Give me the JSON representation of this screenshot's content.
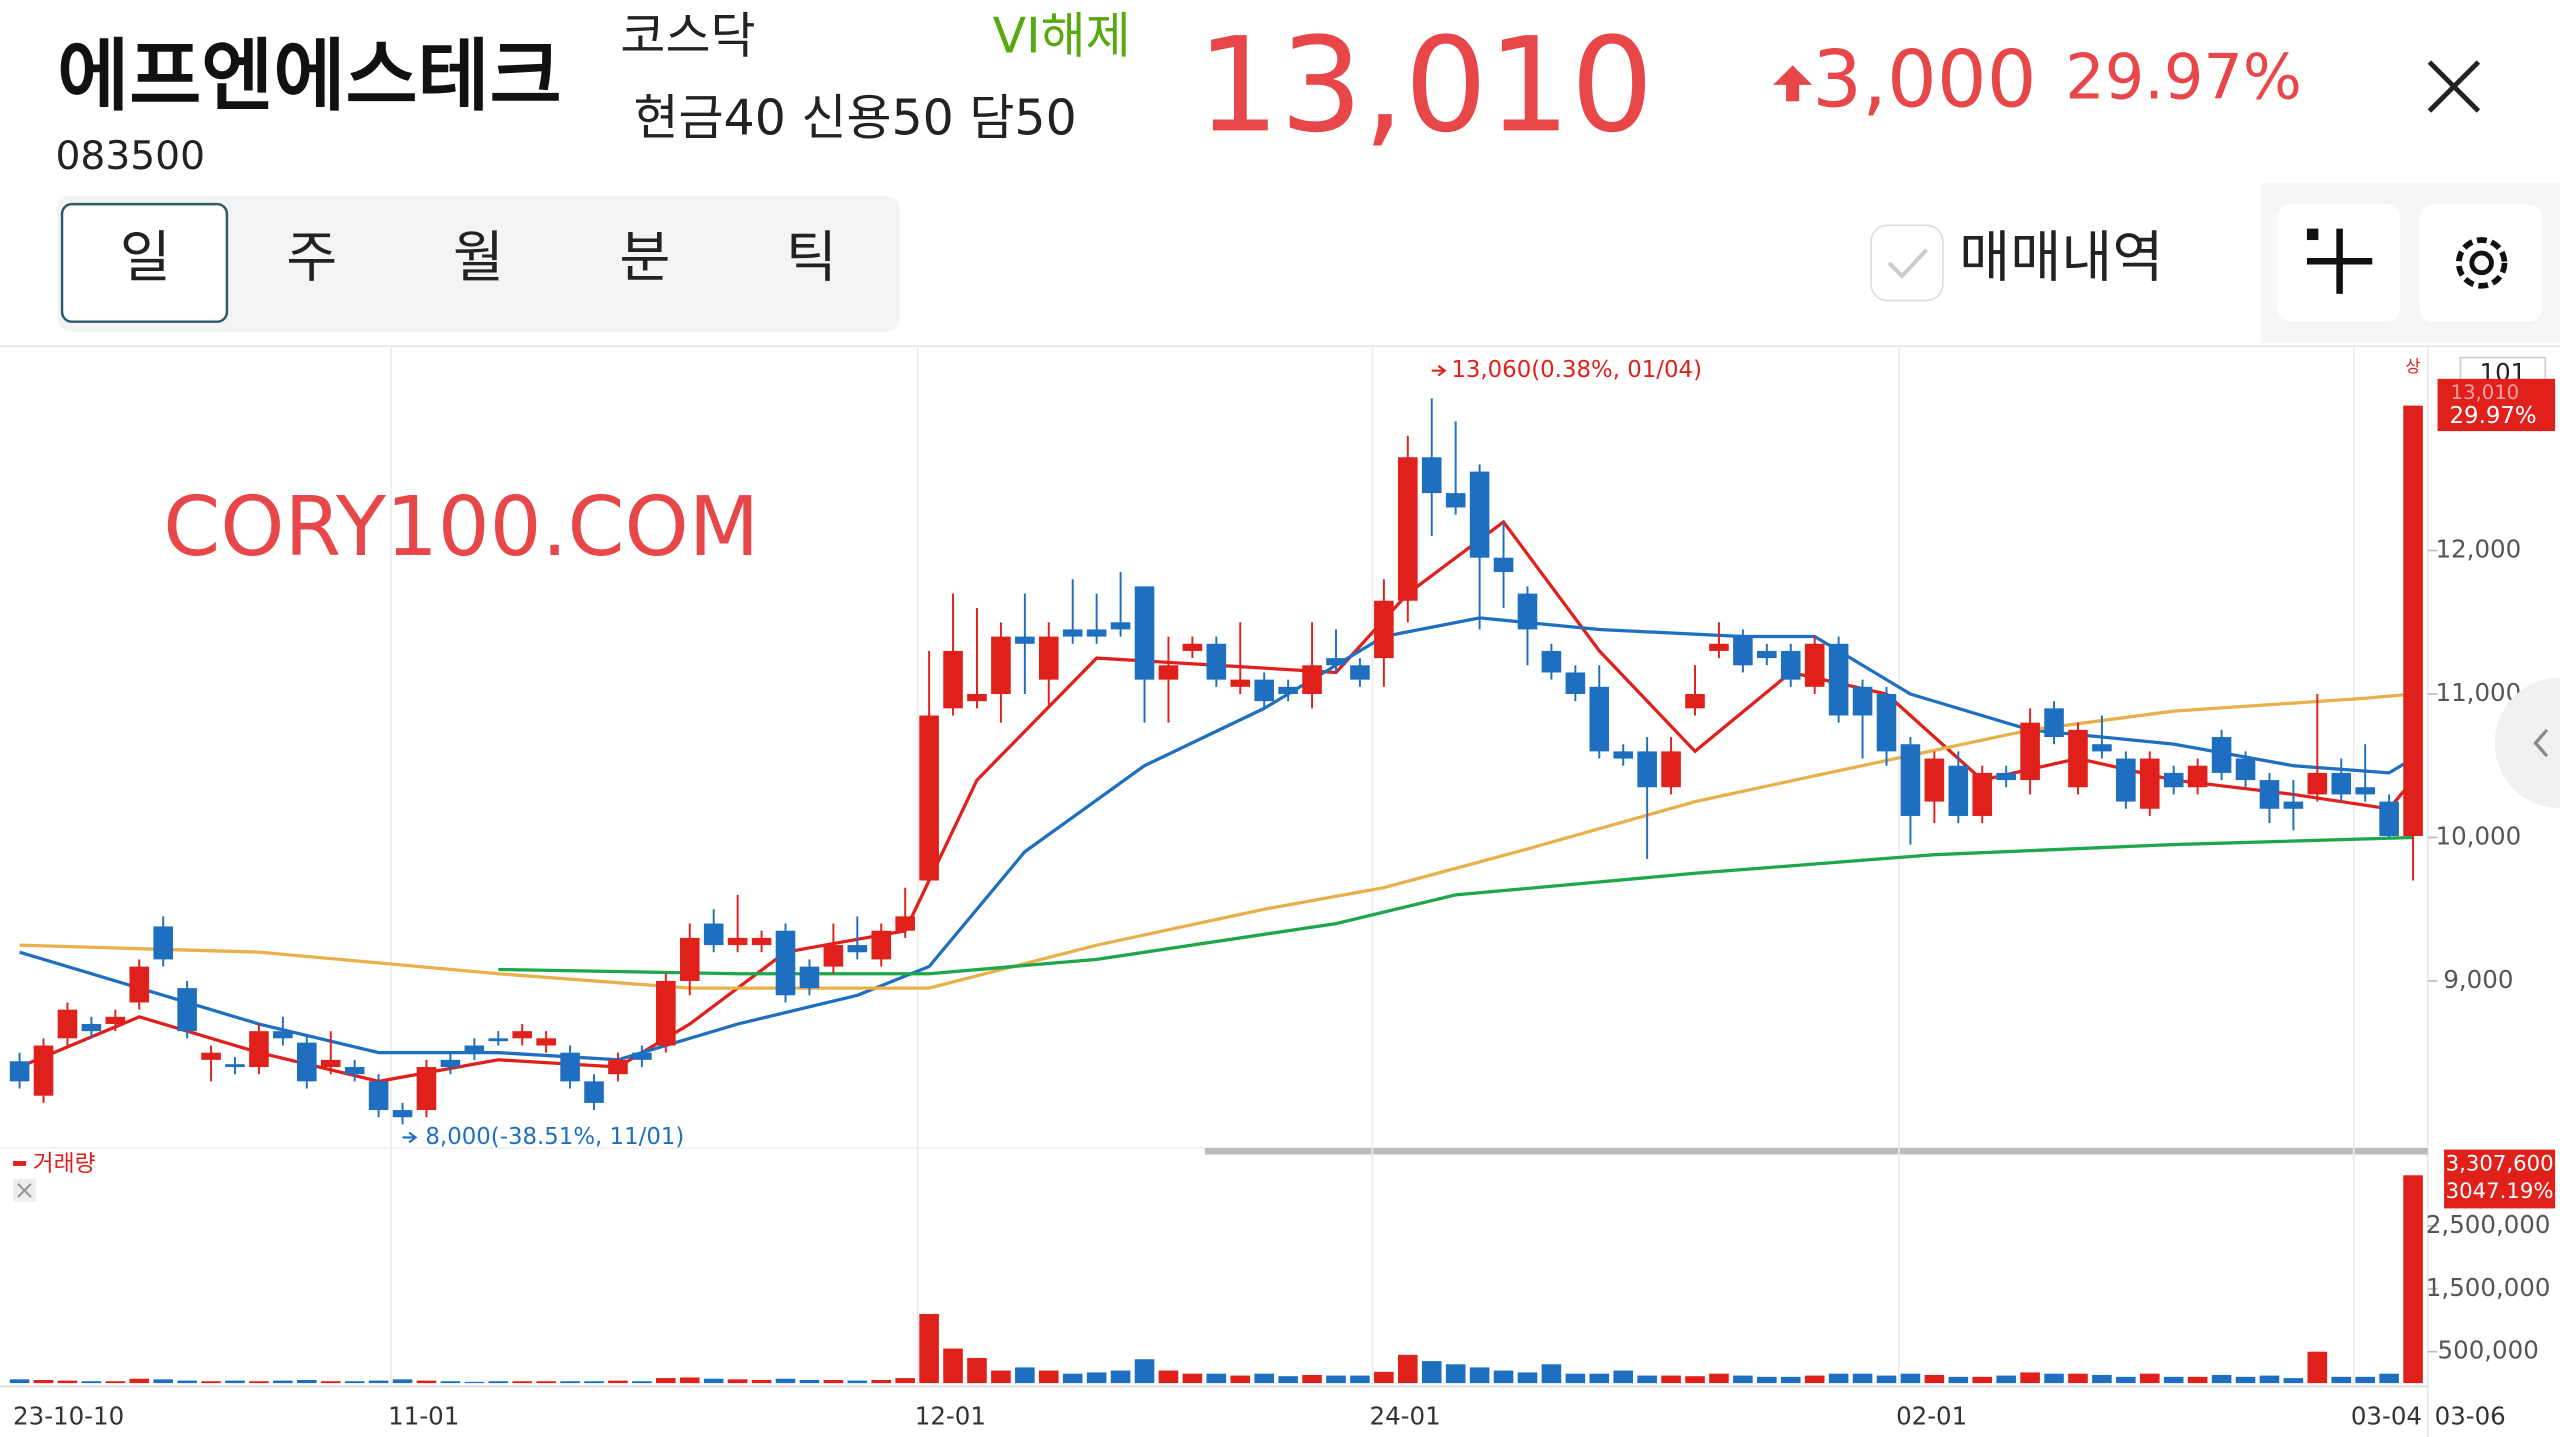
{
  "header": {
    "name": "에프엔에스테크",
    "code": "083500",
    "market": "코스닥",
    "vi": "VI해제",
    "margin": "현금40 신용50 담50",
    "price": "13,010",
    "change": "3,000",
    "change_pct": "29.97%"
  },
  "tabs": [
    "일",
    "주",
    "월",
    "분",
    "틱"
  ],
  "trade_history": "매매내역",
  "chart_data": {
    "type": "candlestick",
    "watermark": "CORY100.COM",
    "xticks": [
      {
        "value": 0,
        "label": "23-10-10"
      },
      {
        "value": 16,
        "label": "11-01"
      },
      {
        "value": 38,
        "label": "12-01"
      },
      {
        "value": 57,
        "label": "24-01"
      },
      {
        "value": 79,
        "label": "02-01"
      },
      {
        "value": 98,
        "label": "03-04"
      }
    ],
    "last_date": "03-06",
    "ylim": [
      7870,
      13390
    ],
    "yticks": [
      {
        "value": 9000,
        "label": "9,000"
      },
      {
        "value": 10000,
        "label": "10,000"
      },
      {
        "value": 11000,
        "label": "11,000"
      },
      {
        "value": 12000,
        "label": "12,000"
      }
    ],
    "open": [
      8440,
      8200,
      8600,
      8700,
      8700,
      8850,
      9380,
      8950,
      8450,
      8420,
      8400,
      8650,
      8570,
      8400,
      8400,
      8300,
      8100,
      8100,
      8450,
      8550,
      8600,
      8600,
      8550,
      8500,
      8300,
      8350,
      8500,
      8550,
      9000,
      9400,
      9250,
      9250,
      9350,
      9100,
      9100,
      9250,
      9150,
      9350,
      9700,
      10900,
      10950,
      11000,
      11400,
      11100,
      11450,
      11450,
      11500,
      11750,
      11100,
      11300,
      11350,
      11050,
      11100,
      11050,
      11000,
      11250,
      11200,
      11250,
      11650,
      12650,
      12400,
      12550,
      11950,
      11700,
      11300,
      11150,
      11050,
      10600,
      10600,
      10350,
      10900,
      11300,
      11400,
      11300,
      11300,
      11050,
      11350,
      11050,
      11000,
      10650,
      10250,
      10500,
      10150,
      10450,
      10400,
      10900,
      10350,
      10650,
      10550,
      10200,
      10450,
      10350,
      10700,
      10550,
      10400,
      10250,
      10300,
      10450,
      10350,
      10250,
      10010
    ],
    "high": [
      8500,
      8600,
      8850,
      8750,
      8800,
      9150,
      9450,
      9000,
      8550,
      8470,
      8700,
      8750,
      8620,
      8650,
      8450,
      8350,
      8150,
      8450,
      8500,
      8600,
      8650,
      8700,
      8650,
      8550,
      8350,
      8500,
      8550,
      9050,
      9400,
      9500,
      9600,
      9350,
      9400,
      9150,
      9400,
      9450,
      9400,
      9650,
      11300,
      11700,
      11600,
      11500,
      11700,
      11500,
      11800,
      11700,
      11850,
      11750,
      11400,
      11400,
      11400,
      11500,
      11150,
      11100,
      11500,
      11450,
      11250,
      11800,
      12800,
      13060,
      12900,
      12600,
      12200,
      11750,
      11350,
      11200,
      11200,
      10650,
      10700,
      10700,
      11200,
      11500,
      11450,
      11350,
      11350,
      11400,
      11400,
      11100,
      11050,
      10700,
      10600,
      10600,
      10500,
      10500,
      10900,
      10950,
      10800,
      10850,
      10600,
      10600,
      10500,
      10550,
      10750,
      10600,
      10450,
      10400,
      11000,
      10550,
      10650,
      10300,
      13010
    ],
    "low": [
      8250,
      8150,
      8550,
      8600,
      8650,
      8800,
      9100,
      8600,
      8300,
      8350,
      8350,
      8550,
      8250,
      8350,
      8300,
      8050,
      8000,
      8050,
      8350,
      8450,
      8550,
      8550,
      8500,
      8250,
      8100,
      8300,
      8400,
      8500,
      8900,
      9200,
      9200,
      9200,
      8850,
      8900,
      9050,
      9150,
      9100,
      9300,
      9700,
      10850,
      10900,
      10800,
      11000,
      10900,
      11350,
      11350,
      11400,
      10800,
      10800,
      11250,
      11050,
      11000,
      10900,
      10950,
      10900,
      11150,
      11050,
      11050,
      11500,
      12100,
      12250,
      11450,
      11600,
      11200,
      11100,
      10950,
      10550,
      10500,
      9850,
      10300,
      10850,
      11250,
      11150,
      11200,
      11050,
      11000,
      10800,
      10550,
      10500,
      9950,
      10100,
      10100,
      10100,
      10350,
      10300,
      10650,
      10300,
      10550,
      10200,
      10150,
      10300,
      10300,
      10400,
      10350,
      10100,
      10050,
      10250,
      10250,
      10250,
      10000,
      9700
    ],
    "close": [
      8300,
      8550,
      8800,
      8650,
      8750,
      9100,
      9150,
      8650,
      8500,
      8400,
      8650,
      8600,
      8300,
      8450,
      8350,
      8100,
      8050,
      8400,
      8400,
      8500,
      8580,
      8650,
      8600,
      8300,
      8150,
      8450,
      8450,
      9000,
      9300,
      9250,
      9300,
      9300,
      8900,
      8950,
      9250,
      9200,
      9350,
      9450,
      10850,
      11300,
      11000,
      11400,
      11350,
      11400,
      11400,
      11400,
      11450,
      11100,
      11200,
      11350,
      11100,
      11100,
      10950,
      11000,
      11200,
      11200,
      11100,
      11650,
      12650,
      12400,
      12300,
      11950,
      11850,
      11450,
      11150,
      11000,
      10600,
      10550,
      10350,
      10600,
      11000,
      11350,
      11200,
      11250,
      11100,
      11350,
      10850,
      10850,
      10600,
      10150,
      10550,
      10150,
      10450,
      10400,
      10800,
      10700,
      10750,
      10600,
      10250,
      10550,
      10350,
      10500,
      10450,
      10400,
      10200,
      10200,
      10450,
      10300,
      10300,
      10010,
      13010
    ],
    "moving_averages": [
      {
        "color": "#e0201b",
        "x": [
          0,
          5,
          10,
          15,
          20,
          25,
          28,
          32,
          37,
          40,
          45,
          50,
          55,
          58,
          62,
          66,
          70,
          74,
          78,
          82,
          86,
          90,
          95,
          99,
          100
        ],
        "values": [
          8400,
          8750,
          8500,
          8300,
          8450,
          8400,
          8700,
          9200,
          9350,
          10400,
          11250,
          11200,
          11150,
          11700,
          12200,
          11300,
          10600,
          11150,
          11000,
          10400,
          10550,
          10400,
          10300,
          10200,
          10400
        ]
      },
      {
        "color": "#1f6fc0",
        "x": [
          0,
          5,
          10,
          15,
          20,
          25,
          30,
          35,
          38,
          42,
          47,
          52,
          57,
          61,
          66,
          72,
          75,
          79,
          84,
          90,
          95,
          99,
          100
        ],
        "values": [
          9200,
          8950,
          8700,
          8500,
          8500,
          8450,
          8700,
          8900,
          9100,
          9900,
          10500,
          10900,
          11400,
          11530,
          11450,
          11400,
          11400,
          11000,
          10750,
          10650,
          10500,
          10450,
          10550
        ]
      },
      {
        "color": "#e8b04a",
        "x": [
          0,
          10,
          20,
          28,
          38,
          45,
          52,
          57,
          63,
          70,
          75,
          84,
          90,
          98,
          100
        ],
        "values": [
          9250,
          9200,
          9050,
          8950,
          8950,
          9250,
          9500,
          9650,
          9920,
          10250,
          10430,
          10750,
          10880,
          10970,
          11000
        ]
      },
      {
        "color": "#1ea64a",
        "x": [
          20,
          30,
          38,
          45,
          55,
          60,
          70,
          80,
          90,
          100
        ],
        "values": [
          9080,
          9050,
          9050,
          9150,
          9400,
          9600,
          9750,
          9880,
          9950,
          10000
        ]
      }
    ],
    "max_label": {
      "index": 59,
      "value": 13060,
      "text": "13,060(0.38%, 01/04)"
    },
    "min_label": {
      "index": 16,
      "value": 8000,
      "text": "8,000(-38.51%, 11/01)"
    },
    "last_badge": "101",
    "last_price_label": "13,010",
    "last_pct_label": "29.97%",
    "limit_mark": "상",
    "volume": {
      "label": "거래량",
      "ylim": [
        0,
        3560000
      ],
      "yticks": [
        {
          "value": 500000,
          "label": "500,000"
        },
        {
          "value": 1500000,
          "label": "1,500,000"
        },
        {
          "value": 2500000,
          "label": "2,500,000"
        }
      ],
      "values": [
        60000,
        50000,
        40000,
        30000,
        30000,
        70000,
        60000,
        40000,
        30000,
        40000,
        30000,
        40000,
        50000,
        30000,
        30000,
        40000,
        60000,
        40000,
        30000,
        20000,
        30000,
        30000,
        30000,
        30000,
        30000,
        40000,
        30000,
        80000,
        90000,
        70000,
        60000,
        50000,
        70000,
        50000,
        50000,
        40000,
        50000,
        80000,
        1100000,
        550000,
        400000,
        200000,
        250000,
        200000,
        150000,
        170000,
        200000,
        380000,
        200000,
        150000,
        150000,
        120000,
        150000,
        110000,
        130000,
        120000,
        120000,
        180000,
        450000,
        350000,
        300000,
        250000,
        200000,
        170000,
        300000,
        150000,
        150000,
        200000,
        120000,
        120000,
        110000,
        150000,
        120000,
        100000,
        100000,
        120000,
        150000,
        150000,
        120000,
        150000,
        130000,
        100000,
        100000,
        120000,
        170000,
        150000,
        150000,
        130000,
        100000,
        150000,
        100000,
        100000,
        130000,
        100000,
        120000,
        80000,
        500000,
        100000,
        100000,
        150000,
        3307600
      ],
      "last_label": "3,307,600",
      "last_pct": "3047.19%"
    }
  }
}
